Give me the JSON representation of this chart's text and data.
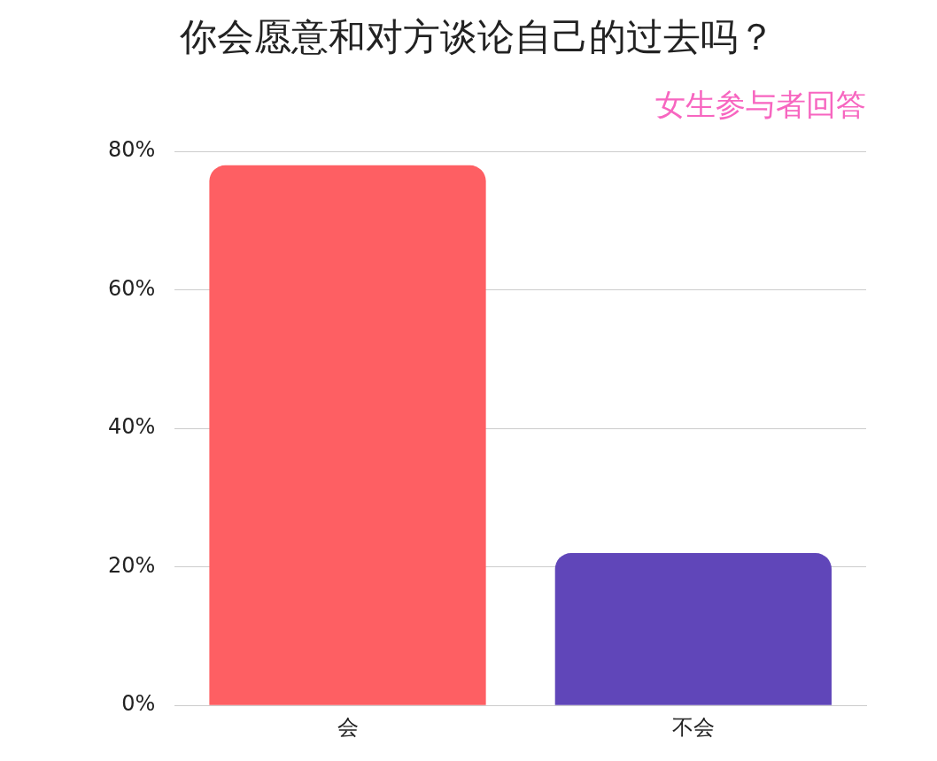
{
  "chart_data": {
    "type": "bar",
    "title": "你会愿意和对方谈论自己的过去吗？",
    "subtitle": "女生参与者回答",
    "categories": [
      "会",
      "不会"
    ],
    "values": [
      78,
      22
    ],
    "colors": [
      "#fe5f63",
      "#6046b9"
    ],
    "ylim": [
      0,
      80
    ],
    "yticks": [
      {
        "value": 0,
        "label": "0%"
      },
      {
        "value": 20,
        "label": "20%"
      },
      {
        "value": 40,
        "label": "40%"
      },
      {
        "value": 60,
        "label": "60%"
      },
      {
        "value": 80,
        "label": "80%"
      }
    ],
    "grid": "y",
    "legend": false
  }
}
